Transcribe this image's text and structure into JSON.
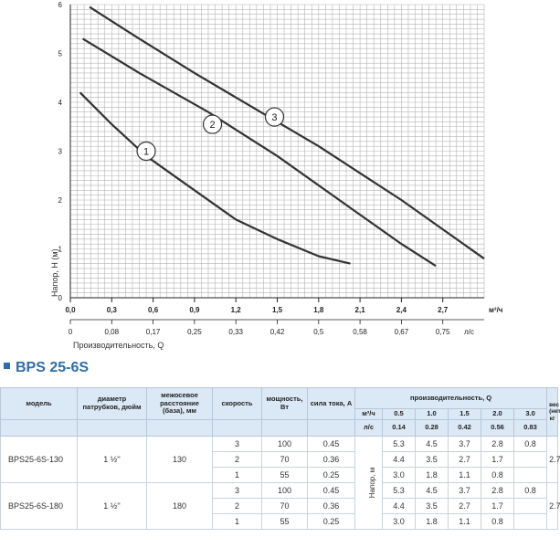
{
  "chart_data": {
    "type": "line",
    "ylabel": "Напор, Н (м)",
    "xlabel_top": "м³/ч",
    "xlabel_bottom": "Производительность, Q",
    "xlabel_bottom_unit": "л/с",
    "ylim": [
      0,
      6
    ],
    "xlim": [
      0,
      3.0
    ],
    "y_ticks": [
      "0",
      "1",
      "2",
      "3",
      "4",
      "5",
      "6"
    ],
    "x_ticks_m3h": [
      "0,0",
      "0,3",
      "0,6",
      "0,9",
      "1,2",
      "1,5",
      "1,8",
      "2,1",
      "2,4",
      "2,7"
    ],
    "x_ticks_ls": [
      "0",
      "0,08",
      "0,17",
      "0,25",
      "0,33",
      "0,42",
      "0,5",
      "0,58",
      "0,67",
      "0,75"
    ],
    "series": [
      {
        "name": "1",
        "x": [
          0.07,
          0.3,
          0.55,
          0.75,
          0.9,
          1.2,
          1.5,
          1.8,
          2.03
        ],
        "y": [
          4.2,
          3.55,
          2.9,
          2.5,
          2.2,
          1.6,
          1.2,
          0.85,
          0.7
        ]
      },
      {
        "name": "2",
        "x": [
          0.09,
          0.5,
          1.0,
          1.5,
          2.0,
          2.4,
          2.65
        ],
        "y": [
          5.3,
          4.6,
          3.8,
          2.9,
          1.9,
          1.1,
          0.65
        ]
      },
      {
        "name": "3",
        "x": [
          0.14,
          0.5,
          0.9,
          1.2,
          1.5,
          1.8,
          2.1,
          2.4,
          2.7,
          3.0
        ],
        "y": [
          5.95,
          5.3,
          4.6,
          4.1,
          3.6,
          3.1,
          2.55,
          2.0,
          1.4,
          0.8
        ]
      }
    ],
    "curve_labels": [
      "1",
      "2",
      "3"
    ]
  },
  "model_title": "BPS 25-6S",
  "table": {
    "headers": {
      "model": "модель",
      "diameter": "диаметр патрубков, дюйм",
      "distance": "межосевое расстояние (база), мм",
      "speed": "скорость",
      "power": "мощность, Вт",
      "current": "сила тока, А",
      "performance": "производительность, Q",
      "unit_m3h": "м³/ч",
      "unit_ls": "л/с",
      "weight": "вес (нетто), кг",
      "head": "Напор, м"
    },
    "q_m3h": [
      "0.5",
      "1.0",
      "1.5",
      "2.0",
      "3.0"
    ],
    "q_ls": [
      "0.14",
      "0.28",
      "0.42",
      "0.56",
      "0.83"
    ],
    "models": [
      {
        "name": "BPS25-6S-130",
        "diameter": "1 ½''",
        "distance": "130",
        "weight": "2.7",
        "rows": [
          {
            "speed": "3",
            "power": "100",
            "current": "0.45",
            "h": [
              "5.3",
              "4.5",
              "3.7",
              "2.8",
              "0.8"
            ]
          },
          {
            "speed": "2",
            "power": "70",
            "current": "0.36",
            "h": [
              "4.4",
              "3.5",
              "2.7",
              "1.7",
              ""
            ]
          },
          {
            "speed": "1",
            "power": "55",
            "current": "0.25",
            "h": [
              "3.0",
              "1.8",
              "1.1",
              "0.8",
              ""
            ]
          }
        ]
      },
      {
        "name": "BPS25-6S-180",
        "diameter": "1 ½''",
        "distance": "180",
        "weight": "2.7",
        "rows": [
          {
            "speed": "3",
            "power": "100",
            "current": "0.45",
            "h": [
              "5.3",
              "4.5",
              "3.7",
              "2.8",
              "0.8"
            ]
          },
          {
            "speed": "2",
            "power": "70",
            "current": "0.36",
            "h": [
              "4.4",
              "3.5",
              "2.7",
              "1.7",
              ""
            ]
          },
          {
            "speed": "1",
            "power": "55",
            "current": "0.25",
            "h": [
              "3.0",
              "1.8",
              "1.1",
              "0.8",
              ""
            ]
          }
        ]
      }
    ]
  },
  "colors": {
    "grid": "#b5b5b5",
    "curve": "#333333",
    "header_bg": "#dbe8f5",
    "title": "#2d6ea8"
  }
}
